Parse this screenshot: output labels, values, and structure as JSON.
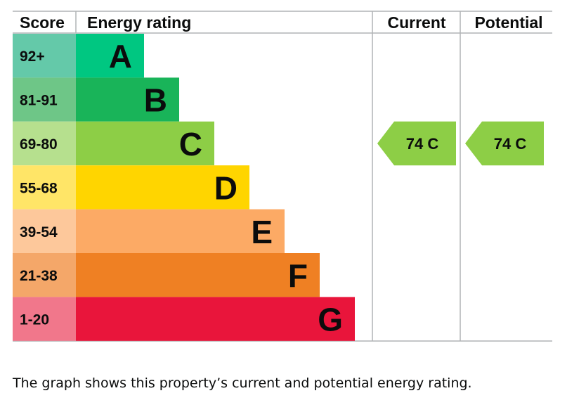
{
  "chart_data": {
    "type": "bar",
    "headers": {
      "score": "Score",
      "rating": "Energy rating",
      "current": "Current",
      "potential": "Potential"
    },
    "bands": [
      {
        "score": "92+",
        "letter": "A",
        "color": "#00c781",
        "score_bg": "#64c9a9"
      },
      {
        "score": "81-91",
        "letter": "B",
        "color": "#19b459",
        "score_bg": "#6ec687"
      },
      {
        "score": "69-80",
        "letter": "C",
        "color": "#8dce46",
        "score_bg": "#b6e08e"
      },
      {
        "score": "55-68",
        "letter": "D",
        "color": "#ffd500",
        "score_bg": "#ffe567"
      },
      {
        "score": "39-54",
        "letter": "E",
        "color": "#fcaa65",
        "score_bg": "#fdc89b"
      },
      {
        "score": "21-38",
        "letter": "F",
        "color": "#ef8023",
        "score_bg": "#f4a769"
      },
      {
        "score": "1-20",
        "letter": "G",
        "color": "#e9153b",
        "score_bg": "#f1778b"
      }
    ],
    "current": {
      "value": 74,
      "letter": "C",
      "label": "74  C",
      "color": "#8dce46"
    },
    "potential": {
      "value": 74,
      "letter": "C",
      "label": "74  C",
      "color": "#8dce46"
    }
  },
  "caption": "The graph shows this property’s current and potential energy rating."
}
